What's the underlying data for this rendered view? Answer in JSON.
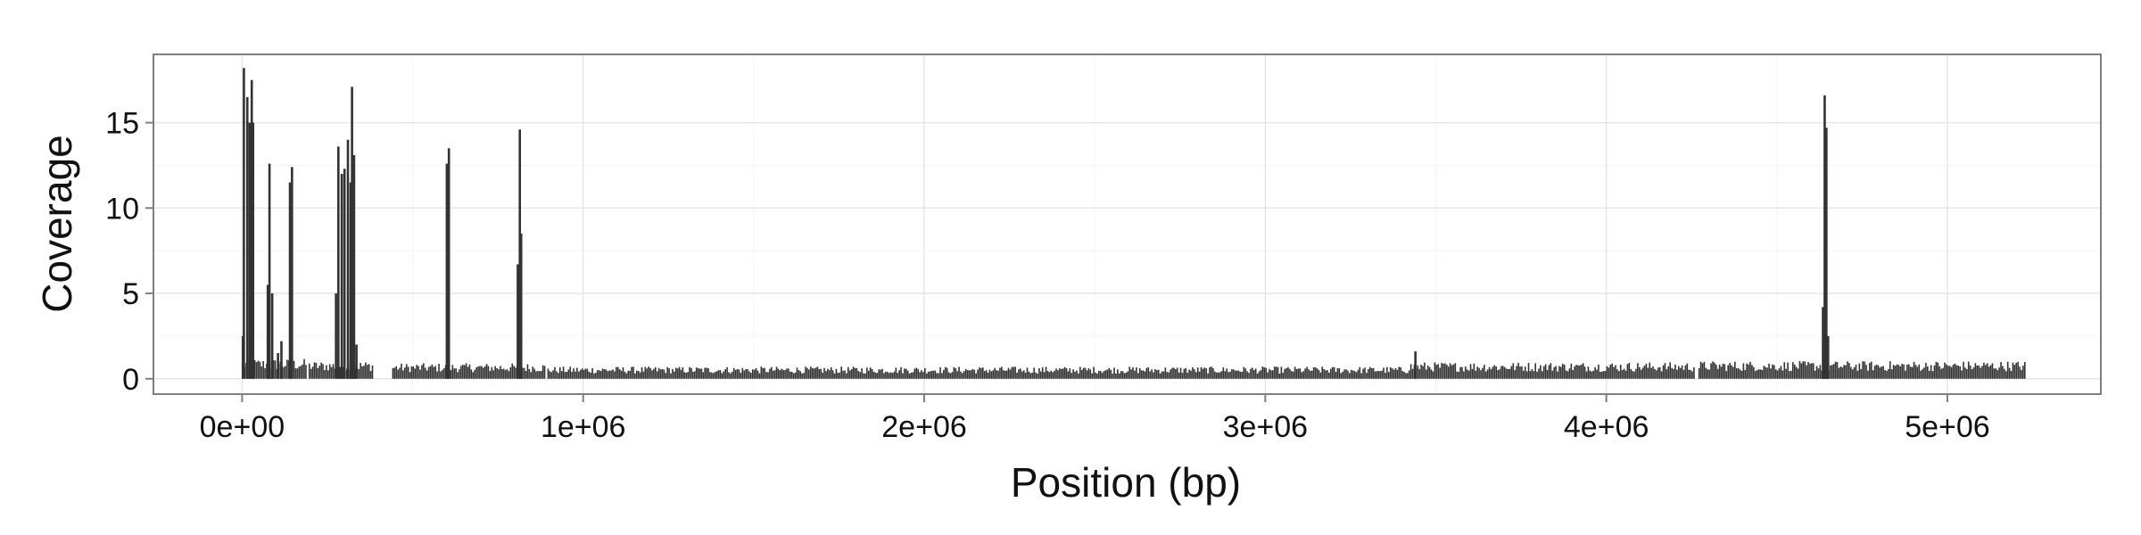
{
  "chart_data": {
    "type": "bar",
    "title": "",
    "xlabel": "Position (bp)",
    "ylabel": "Coverage",
    "xlim": [
      -260000,
      5450000
    ],
    "ylim": [
      -0.9,
      19
    ],
    "x_ticks": [
      0,
      1000000,
      2000000,
      3000000,
      4000000,
      5000000
    ],
    "x_tick_labels": [
      "0e+00",
      "1e+06",
      "2e+06",
      "3e+06",
      "4e+06",
      "5e+06"
    ],
    "y_ticks": [
      0,
      5,
      10,
      15
    ],
    "y_tick_labels": [
      "0",
      "5",
      "10",
      "15"
    ],
    "grid": true,
    "legend": "none",
    "bar_color": "#333333",
    "baseline_bin_width_bp": 5000,
    "baseline_segments": [
      {
        "start": 0,
        "end": 190000,
        "coverage": 0.9
      },
      {
        "start": 195000,
        "end": 385000,
        "coverage": 0.8
      },
      {
        "start": 440000,
        "end": 890000,
        "coverage": 0.7
      },
      {
        "start": 895000,
        "end": 3420000,
        "coverage": 0.55
      },
      {
        "start": 3420000,
        "end": 4260000,
        "coverage": 0.75
      },
      {
        "start": 4270000,
        "end": 5230000,
        "coverage": 0.8
      }
    ],
    "peaks": [
      {
        "x": 2000,
        "y": 2.5
      },
      {
        "x": 5000,
        "y": 18.2
      },
      {
        "x": 15000,
        "y": 16.5
      },
      {
        "x": 22000,
        "y": 15.0
      },
      {
        "x": 28000,
        "y": 17.5
      },
      {
        "x": 32000,
        "y": 15.0
      },
      {
        "x": 75000,
        "y": 5.5
      },
      {
        "x": 80000,
        "y": 12.6
      },
      {
        "x": 88000,
        "y": 5.0
      },
      {
        "x": 105000,
        "y": 1.5
      },
      {
        "x": 115000,
        "y": 2.2
      },
      {
        "x": 140000,
        "y": 11.5
      },
      {
        "x": 146000,
        "y": 12.4
      },
      {
        "x": 275000,
        "y": 5.0
      },
      {
        "x": 282000,
        "y": 13.6
      },
      {
        "x": 292000,
        "y": 12.0
      },
      {
        "x": 300000,
        "y": 12.3
      },
      {
        "x": 310000,
        "y": 14.0
      },
      {
        "x": 318000,
        "y": 11.5
      },
      {
        "x": 322000,
        "y": 17.1
      },
      {
        "x": 328000,
        "y": 13.1
      },
      {
        "x": 335000,
        "y": 2.0
      },
      {
        "x": 600000,
        "y": 12.6
      },
      {
        "x": 606000,
        "y": 13.5
      },
      {
        "x": 808000,
        "y": 6.7
      },
      {
        "x": 814000,
        "y": 14.6
      },
      {
        "x": 818000,
        "y": 8.5
      },
      {
        "x": 3440000,
        "y": 1.6
      },
      {
        "x": 4635000,
        "y": 4.2
      },
      {
        "x": 4640000,
        "y": 16.6
      },
      {
        "x": 4645000,
        "y": 14.7
      },
      {
        "x": 4650000,
        "y": 2.5
      }
    ]
  }
}
